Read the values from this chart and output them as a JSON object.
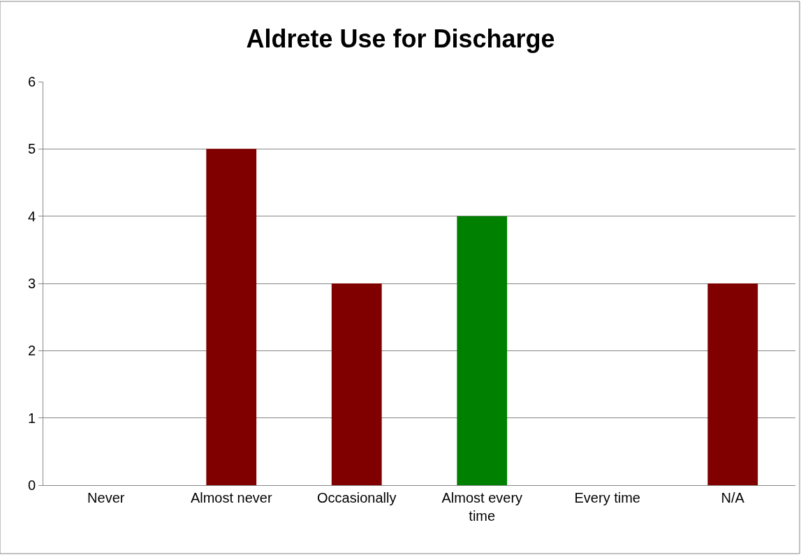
{
  "chart_data": {
    "type": "bar",
    "title": "Aldrete Use for Discharge",
    "categories": [
      "Never",
      "Almost never",
      "Occasionally",
      "Almost every time",
      "Every time",
      "N/A"
    ],
    "values": [
      0,
      5,
      3,
      4,
      0,
      3
    ],
    "colors": [
      "#800000",
      "#800000",
      "#800000",
      "#008000",
      "#800000",
      "#800000"
    ],
    "ylim": [
      0,
      6
    ],
    "yticks": [
      0,
      1,
      2,
      3,
      4,
      5,
      6
    ],
    "grid": "y"
  }
}
